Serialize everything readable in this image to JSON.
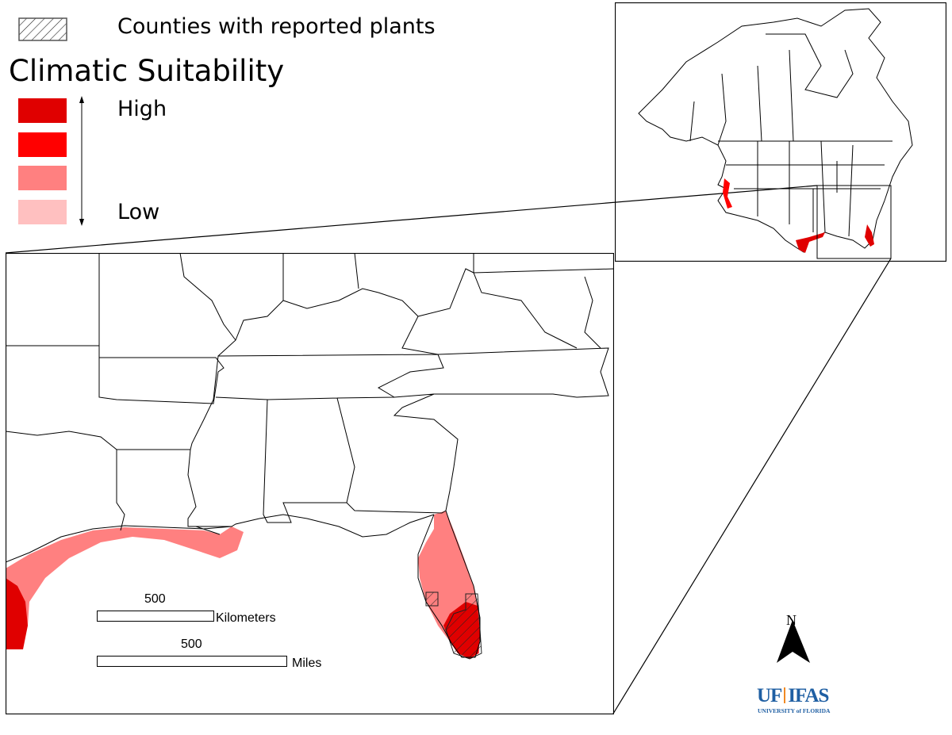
{
  "legend": {
    "hatch_label": "Counties with reported plants",
    "title": "Climatic Suitability",
    "high_label": "High",
    "low_label": "Low",
    "classes": [
      {
        "level": "highest",
        "color": "#e00000"
      },
      {
        "level": "high",
        "color": "#ff0000"
      },
      {
        "level": "moderate",
        "color": "#ff8080"
      },
      {
        "level": "low",
        "color": "#ffc0c0"
      }
    ]
  },
  "scale_bars": {
    "km_value": "500",
    "km_unit": "Kilometers",
    "mi_value": "500",
    "mi_unit": "Miles"
  },
  "north_arrow": {
    "label": "N"
  },
  "logo": {
    "main_left": "UF",
    "main_right": "IFAS",
    "sub": "UNIVERSITY of FLORIDA",
    "color": "#1f5fa3",
    "divider_color": "#f08a24"
  }
}
